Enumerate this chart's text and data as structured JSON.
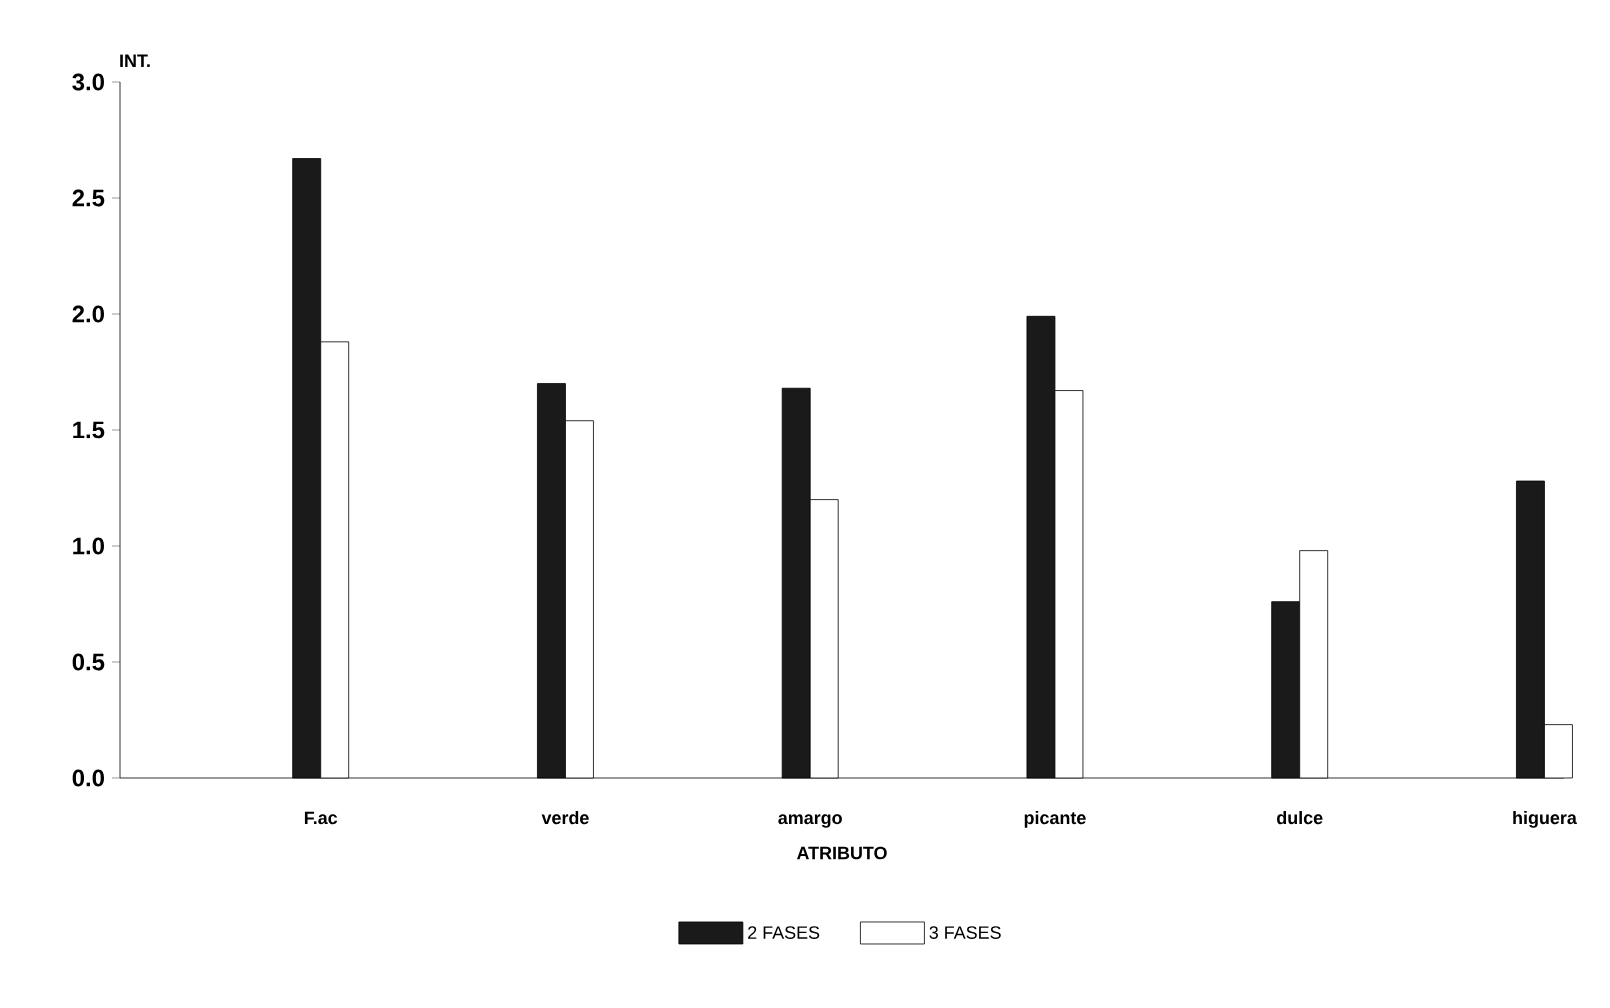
{
  "chart_data": {
    "type": "bar",
    "xlabel": "ATRIBUTO",
    "ylabel": "INT.",
    "categories": [
      "F.ac",
      "verde",
      "amargo",
      "picante",
      "dulce",
      "higuera"
    ],
    "series": [
      {
        "name": "2 FASES",
        "color": "#1a1a1a",
        "values": [
          2.67,
          1.7,
          1.68,
          1.99,
          0.76,
          1.28
        ]
      },
      {
        "name": "3 FASES",
        "color": "#ffffff",
        "values": [
          1.88,
          1.54,
          1.2,
          1.67,
          0.98,
          0.23
        ]
      }
    ],
    "ylim": [
      0,
      3
    ],
    "yticks": [
      {
        "value": 0,
        "label": "0.0"
      },
      {
        "value": 0.5,
        "label": "0.5"
      },
      {
        "value": 1.0,
        "label": "1.0"
      },
      {
        "value": 1.5,
        "label": "1.5"
      },
      {
        "value": 2.0,
        "label": "2.0"
      },
      {
        "value": 2.5,
        "label": "2.5"
      },
      {
        "value": 3.0,
        "label": "3.0"
      }
    ],
    "grid": false,
    "legend": "bottom"
  }
}
